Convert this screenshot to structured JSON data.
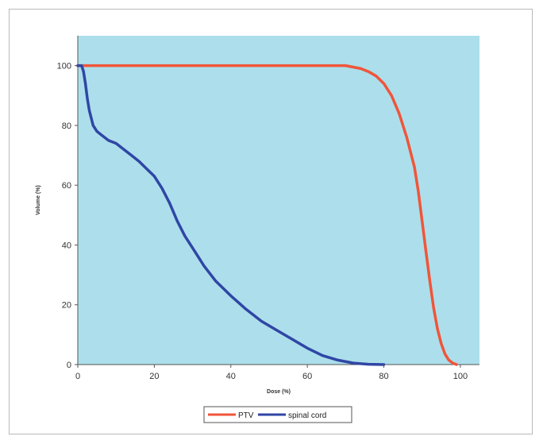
{
  "chart_data": {
    "type": "line",
    "title": "",
    "xlabel": "Dose (%)",
    "ylabel": "Volume (%)",
    "xlim": [
      0,
      105
    ],
    "ylim": [
      0,
      110
    ],
    "xticks": [
      0,
      20,
      40,
      60,
      80,
      100
    ],
    "yticks": [
      0,
      20,
      40,
      60,
      80,
      100
    ],
    "grid": false,
    "legend": "bottom",
    "plot_background": "#acdfeb",
    "series": [
      {
        "name": "PTV",
        "color": "#f0553a",
        "x": [
          0,
          10,
          20,
          30,
          40,
          50,
          60,
          68,
          70,
          72,
          74,
          76,
          78,
          80,
          82,
          84,
          86,
          88,
          89,
          90,
          91,
          92,
          93,
          94,
          95,
          96,
          97,
          98,
          99
        ],
        "y": [
          100,
          100,
          100,
          100,
          100,
          100,
          100,
          100,
          100,
          99.5,
          99,
          98,
          96.5,
          94,
          90,
          84,
          76,
          66,
          58,
          48,
          38,
          28,
          19,
          12,
          7,
          3.5,
          1.5,
          0.5,
          0
        ]
      },
      {
        "name": "spinal cord",
        "color": "#3046a5",
        "x": [
          0,
          1,
          1.5,
          2,
          2.5,
          3,
          4,
          5,
          6,
          8,
          10,
          12,
          14,
          16,
          18,
          20,
          22,
          24,
          26,
          28,
          30,
          33,
          36,
          40,
          44,
          48,
          52,
          56,
          60,
          64,
          68,
          72,
          76,
          80
        ],
        "y": [
          100,
          100,
          98,
          94,
          89,
          85,
          80,
          78,
          77,
          75,
          74,
          72,
          70,
          68,
          65.5,
          63,
          59,
          54,
          48,
          43,
          39,
          33,
          28,
          23,
          18.5,
          14.5,
          11.5,
          8.5,
          5.5,
          3,
          1.5,
          0.5,
          0.1,
          0
        ]
      }
    ]
  }
}
